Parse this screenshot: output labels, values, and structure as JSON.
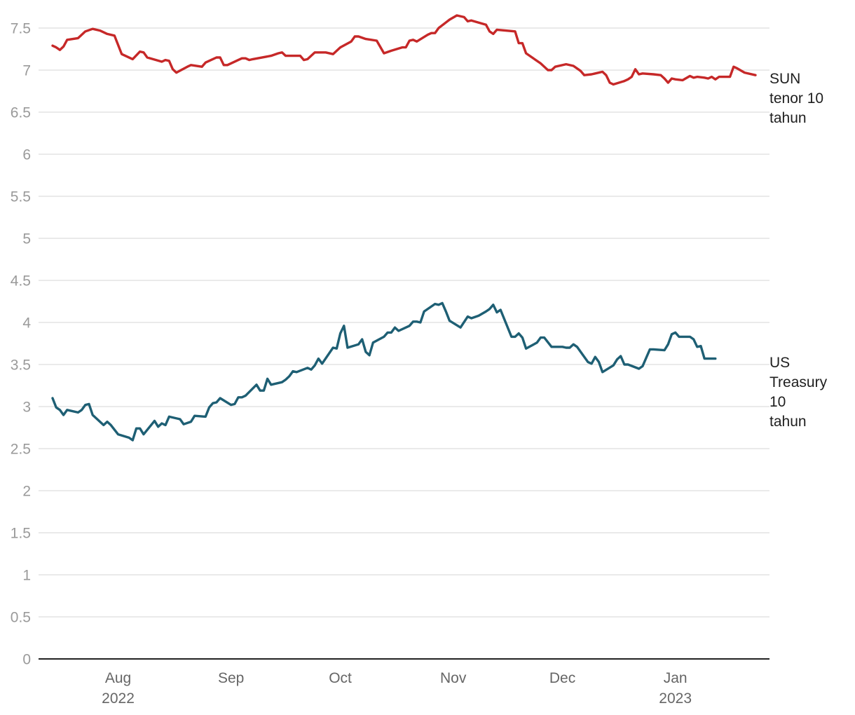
{
  "chart_data": {
    "type": "line",
    "title": "",
    "xlabel": "",
    "ylabel": "",
    "ylim": [
      0,
      7.75
    ],
    "y_ticks": [
      "0",
      "0.5",
      "1",
      "1.5",
      "2",
      "2.5",
      "3",
      "3.5",
      "4",
      "4.5",
      "5",
      "5.5",
      "6",
      "6.5",
      "7",
      "7.5"
    ],
    "x_range": [
      "2022-07-11",
      "2023-01-13"
    ],
    "x_ticks": [
      {
        "date": "2022-08-01",
        "label": "Aug",
        "sublabel": "2022"
      },
      {
        "date": "2022-09-01",
        "label": "Sep",
        "sublabel": ""
      },
      {
        "date": "2022-10-01",
        "label": "Oct",
        "sublabel": ""
      },
      {
        "date": "2022-11-01",
        "label": "Nov",
        "sublabel": ""
      },
      {
        "date": "2022-12-01",
        "label": "Dec",
        "sublabel": ""
      },
      {
        "date": "2023-01-01",
        "label": "Jan",
        "sublabel": "2023"
      }
    ],
    "grid": true,
    "legend": "none",
    "series": [
      {
        "name": "SUN tenor 10 tahun",
        "label_lines": [
          "SUN",
          "tenor 10",
          "tahun"
        ],
        "color": "#c62828",
        "points": [
          [
            "2022-07-14",
            7.29
          ],
          [
            "2022-07-15",
            7.27
          ],
          [
            "2022-07-16",
            7.24
          ],
          [
            "2022-07-17",
            7.28
          ],
          [
            "2022-07-18",
            7.36
          ],
          [
            "2022-07-21",
            7.38
          ],
          [
            "2022-07-23",
            7.46
          ],
          [
            "2022-07-25",
            7.49
          ],
          [
            "2022-07-27",
            7.47
          ],
          [
            "2022-07-29",
            7.43
          ],
          [
            "2022-07-31",
            7.41
          ],
          [
            "2022-08-02",
            7.19
          ],
          [
            "2022-08-05",
            7.13
          ],
          [
            "2022-08-07",
            7.22
          ],
          [
            "2022-08-08",
            7.21
          ],
          [
            "2022-08-09",
            7.15
          ],
          [
            "2022-08-13",
            7.1
          ],
          [
            "2022-08-14",
            7.12
          ],
          [
            "2022-08-15",
            7.11
          ],
          [
            "2022-08-16",
            7.01
          ],
          [
            "2022-08-17",
            6.97
          ],
          [
            "2022-08-20",
            7.04
          ],
          [
            "2022-08-21",
            7.06
          ],
          [
            "2022-08-24",
            7.04
          ],
          [
            "2022-08-25",
            7.09
          ],
          [
            "2022-08-28",
            7.15
          ],
          [
            "2022-08-29",
            7.15
          ],
          [
            "2022-08-30",
            7.06
          ],
          [
            "2022-08-31",
            7.06
          ],
          [
            "2022-09-03",
            7.12
          ],
          [
            "2022-09-04",
            7.14
          ],
          [
            "2022-09-05",
            7.14
          ],
          [
            "2022-09-06",
            7.12
          ],
          [
            "2022-09-07",
            7.13
          ],
          [
            "2022-09-12",
            7.17
          ],
          [
            "2022-09-14",
            7.2
          ],
          [
            "2022-09-15",
            7.21
          ],
          [
            "2022-09-16",
            7.17
          ],
          [
            "2022-09-18",
            7.17
          ],
          [
            "2022-09-20",
            7.17
          ],
          [
            "2022-09-21",
            7.12
          ],
          [
            "2022-09-22",
            7.13
          ],
          [
            "2022-09-24",
            7.21
          ],
          [
            "2022-09-27",
            7.21
          ],
          [
            "2022-09-29",
            7.19
          ],
          [
            "2022-10-01",
            7.27
          ],
          [
            "2022-10-04",
            7.34
          ],
          [
            "2022-10-05",
            7.4
          ],
          [
            "2022-10-06",
            7.4
          ],
          [
            "2022-10-08",
            7.37
          ],
          [
            "2022-10-11",
            7.35
          ],
          [
            "2022-10-13",
            7.2
          ],
          [
            "2022-10-15",
            7.23
          ],
          [
            "2022-10-18",
            7.27
          ],
          [
            "2022-10-19",
            7.27
          ],
          [
            "2022-10-20",
            7.35
          ],
          [
            "2022-10-21",
            7.36
          ],
          [
            "2022-10-22",
            7.34
          ],
          [
            "2022-10-25",
            7.42
          ],
          [
            "2022-10-26",
            7.44
          ],
          [
            "2022-10-27",
            7.44
          ],
          [
            "2022-10-28",
            7.5
          ],
          [
            "2022-10-31",
            7.6
          ],
          [
            "2022-11-02",
            7.65
          ],
          [
            "2022-11-04",
            7.63
          ],
          [
            "2022-11-05",
            7.58
          ],
          [
            "2022-11-06",
            7.59
          ],
          [
            "2022-11-10",
            7.54
          ],
          [
            "2022-11-11",
            7.46
          ],
          [
            "2022-11-12",
            7.43
          ],
          [
            "2022-11-13",
            7.48
          ],
          [
            "2022-11-18",
            7.46
          ],
          [
            "2022-11-19",
            7.32
          ],
          [
            "2022-11-20",
            7.32
          ],
          [
            "2022-11-21",
            7.2
          ],
          [
            "2022-11-25",
            7.08
          ],
          [
            "2022-11-27",
            7.0
          ],
          [
            "2022-11-28",
            7.0
          ],
          [
            "2022-11-29",
            7.04
          ],
          [
            "2022-12-02",
            7.07
          ],
          [
            "2022-12-04",
            7.05
          ],
          [
            "2022-12-06",
            6.99
          ],
          [
            "2022-12-07",
            6.94
          ],
          [
            "2022-12-09",
            6.95
          ],
          [
            "2022-12-10",
            6.96
          ],
          [
            "2022-12-12",
            6.98
          ],
          [
            "2022-12-13",
            6.94
          ],
          [
            "2022-12-14",
            6.85
          ],
          [
            "2022-12-15",
            6.83
          ],
          [
            "2022-12-18",
            6.87
          ],
          [
            "2022-12-19",
            6.89
          ],
          [
            "2022-12-20",
            6.92
          ],
          [
            "2022-12-21",
            7.01
          ],
          [
            "2022-12-22",
            6.95
          ],
          [
            "2022-12-23",
            6.96
          ],
          [
            "2022-12-26",
            6.95
          ],
          [
            "2022-12-28",
            6.94
          ],
          [
            "2022-12-29",
            6.9
          ],
          [
            "2022-12-30",
            6.85
          ],
          [
            "2022-12-31",
            6.9
          ],
          [
            "2023-01-01",
            6.89
          ],
          [
            "2023-01-03",
            6.88
          ],
          [
            "2023-01-05",
            6.93
          ],
          [
            "2023-01-06",
            6.91
          ],
          [
            "2023-01-07",
            6.92
          ],
          [
            "2023-01-09",
            6.91
          ],
          [
            "2023-01-10",
            6.9
          ],
          [
            "2023-01-11",
            6.92
          ],
          [
            "2023-01-12",
            6.89
          ],
          [
            "2023-01-13",
            6.92
          ],
          [
            "2023-01-16",
            6.92
          ],
          [
            "2023-01-17",
            7.04
          ],
          [
            "2023-01-18",
            7.02
          ],
          [
            "2023-01-20",
            6.97
          ],
          [
            "2023-01-23",
            6.94
          ]
        ]
      },
      {
        "name": "US Treasury 10 tahun",
        "label_lines": [
          "US",
          "Treasury",
          "10",
          "tahun"
        ],
        "color": "#1e5f74",
        "points": [
          [
            "2022-07-14",
            3.1
          ],
          [
            "2022-07-15",
            2.99
          ],
          [
            "2022-07-16",
            2.96
          ],
          [
            "2022-07-17",
            2.9
          ],
          [
            "2022-07-18",
            2.96
          ],
          [
            "2022-07-21",
            2.93
          ],
          [
            "2022-07-22",
            2.96
          ],
          [
            "2022-07-23",
            3.02
          ],
          [
            "2022-07-24",
            3.03
          ],
          [
            "2022-07-25",
            2.9
          ],
          [
            "2022-07-28",
            2.78
          ],
          [
            "2022-07-29",
            2.82
          ],
          [
            "2022-07-30",
            2.78
          ],
          [
            "2022-08-01",
            2.67
          ],
          [
            "2022-08-04",
            2.63
          ],
          [
            "2022-08-05",
            2.6
          ],
          [
            "2022-08-06",
            2.74
          ],
          [
            "2022-08-07",
            2.74
          ],
          [
            "2022-08-08",
            2.67
          ],
          [
            "2022-08-11",
            2.83
          ],
          [
            "2022-08-12",
            2.76
          ],
          [
            "2022-08-13",
            2.8
          ],
          [
            "2022-08-14",
            2.78
          ],
          [
            "2022-08-15",
            2.88
          ],
          [
            "2022-08-18",
            2.85
          ],
          [
            "2022-08-19",
            2.79
          ],
          [
            "2022-08-21",
            2.82
          ],
          [
            "2022-08-22",
            2.89
          ],
          [
            "2022-08-25",
            2.88
          ],
          [
            "2022-08-26",
            2.99
          ],
          [
            "2022-08-27",
            3.04
          ],
          [
            "2022-08-28",
            3.05
          ],
          [
            "2022-08-29",
            3.1
          ],
          [
            "2022-09-01",
            3.02
          ],
          [
            "2022-09-02",
            3.03
          ],
          [
            "2022-09-03",
            3.11
          ],
          [
            "2022-09-04",
            3.11
          ],
          [
            "2022-09-05",
            3.13
          ],
          [
            "2022-09-08",
            3.26
          ],
          [
            "2022-09-09",
            3.19
          ],
          [
            "2022-09-10",
            3.19
          ],
          [
            "2022-09-11",
            3.33
          ],
          [
            "2022-09-12",
            3.26
          ],
          [
            "2022-09-15",
            3.29
          ],
          [
            "2022-09-16",
            3.32
          ],
          [
            "2022-09-17",
            3.36
          ],
          [
            "2022-09-18",
            3.42
          ],
          [
            "2022-09-19",
            3.41
          ],
          [
            "2022-09-22",
            3.46
          ],
          [
            "2022-09-23",
            3.44
          ],
          [
            "2022-09-24",
            3.49
          ],
          [
            "2022-09-25",
            3.57
          ],
          [
            "2022-09-26",
            3.51
          ],
          [
            "2022-09-29",
            3.7
          ],
          [
            "2022-09-30",
            3.69
          ],
          [
            "2022-10-01",
            3.87
          ],
          [
            "2022-10-02",
            3.96
          ],
          [
            "2022-10-03",
            3.7
          ],
          [
            "2022-10-06",
            3.74
          ],
          [
            "2022-10-07",
            3.8
          ],
          [
            "2022-10-08",
            3.65
          ],
          [
            "2022-10-09",
            3.61
          ],
          [
            "2022-10-10",
            3.76
          ],
          [
            "2022-10-13",
            3.83
          ],
          [
            "2022-10-14",
            3.88
          ],
          [
            "2022-10-15",
            3.88
          ],
          [
            "2022-10-16",
            3.94
          ],
          [
            "2022-10-17",
            3.9
          ],
          [
            "2022-10-20",
            3.96
          ],
          [
            "2022-10-21",
            4.01
          ],
          [
            "2022-10-22",
            4.01
          ],
          [
            "2022-10-23",
            4.0
          ],
          [
            "2022-10-24",
            4.13
          ],
          [
            "2022-10-27",
            4.22
          ],
          [
            "2022-10-28",
            4.21
          ],
          [
            "2022-10-29",
            4.23
          ],
          [
            "2022-10-30",
            4.13
          ],
          [
            "2022-10-31",
            4.02
          ],
          [
            "2022-11-03",
            3.94
          ],
          [
            "2022-11-05",
            4.07
          ],
          [
            "2022-11-06",
            4.05
          ],
          [
            "2022-11-08",
            4.08
          ],
          [
            "2022-11-10",
            4.13
          ],
          [
            "2022-11-11",
            4.16
          ],
          [
            "2022-11-12",
            4.21
          ],
          [
            "2022-11-13",
            4.12
          ],
          [
            "2022-11-14",
            4.15
          ],
          [
            "2022-11-17",
            3.83
          ],
          [
            "2022-11-18",
            3.83
          ],
          [
            "2022-11-19",
            3.87
          ],
          [
            "2022-11-20",
            3.82
          ],
          [
            "2022-11-21",
            3.69
          ],
          [
            "2022-11-24",
            3.76
          ],
          [
            "2022-11-25",
            3.82
          ],
          [
            "2022-11-26",
            3.82
          ],
          [
            "2022-11-28",
            3.71
          ],
          [
            "2022-12-01",
            3.71
          ],
          [
            "2022-12-02",
            3.7
          ],
          [
            "2022-12-03",
            3.7
          ],
          [
            "2022-12-04",
            3.74
          ],
          [
            "2022-12-05",
            3.71
          ],
          [
            "2022-12-08",
            3.53
          ],
          [
            "2022-12-09",
            3.51
          ],
          [
            "2022-12-10",
            3.59
          ],
          [
            "2022-12-11",
            3.53
          ],
          [
            "2022-12-12",
            3.41
          ],
          [
            "2022-12-15",
            3.49
          ],
          [
            "2022-12-16",
            3.56
          ],
          [
            "2022-12-17",
            3.6
          ],
          [
            "2022-12-18",
            3.5
          ],
          [
            "2022-12-19",
            3.5
          ],
          [
            "2022-12-22",
            3.45
          ],
          [
            "2022-12-23",
            3.48
          ],
          [
            "2022-12-25",
            3.68
          ],
          [
            "2022-12-26",
            3.68
          ],
          [
            "2022-12-29",
            3.67
          ],
          [
            "2022-12-30",
            3.74
          ],
          [
            "2022-12-31",
            3.86
          ],
          [
            "2023-01-01",
            3.88
          ],
          [
            "2023-01-02",
            3.83
          ],
          [
            "2023-01-05",
            3.83
          ],
          [
            "2023-01-06",
            3.8
          ],
          [
            "2023-01-07",
            3.71
          ],
          [
            "2023-01-08",
            3.72
          ],
          [
            "2023-01-09",
            3.57
          ],
          [
            "2023-01-12",
            3.57
          ]
        ]
      }
    ]
  }
}
